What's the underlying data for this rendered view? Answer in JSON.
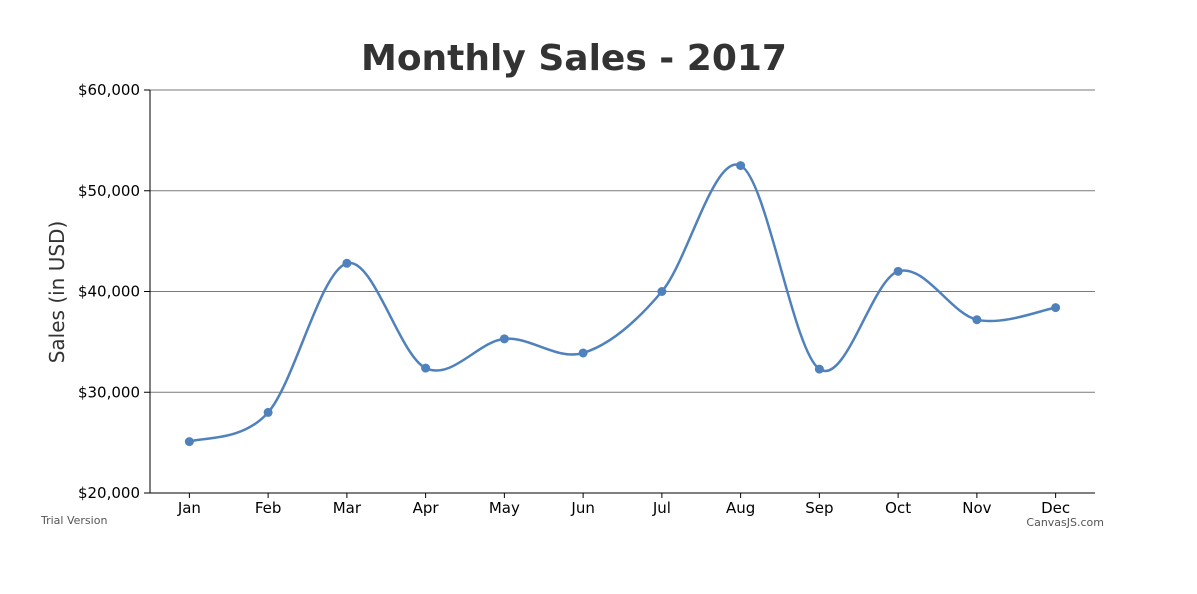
{
  "chart_data": {
    "type": "line",
    "title": "Monthly Sales - 2017",
    "ylabel": "Sales (in USD)",
    "xlabel": "",
    "categories": [
      "Jan",
      "Feb",
      "Mar",
      "Apr",
      "May",
      "Jun",
      "Jul",
      "Aug",
      "Sep",
      "Oct",
      "Nov",
      "Dec"
    ],
    "values": [
      25100,
      28000,
      42800,
      32400,
      35300,
      33900,
      40000,
      52500,
      32300,
      42000,
      37200,
      38400
    ],
    "ylim": [
      20000,
      60000
    ],
    "yticks": [
      20000,
      30000,
      40000,
      50000,
      60000
    ],
    "ytick_labels": [
      "$20,000",
      "$30,000",
      "$40,000",
      "$50,000",
      "$60,000"
    ],
    "grid": true,
    "smooth": true,
    "color": "#4f81bc"
  },
  "credits": {
    "trial": "Trial Version",
    "brand": "CanvasJS.com"
  }
}
